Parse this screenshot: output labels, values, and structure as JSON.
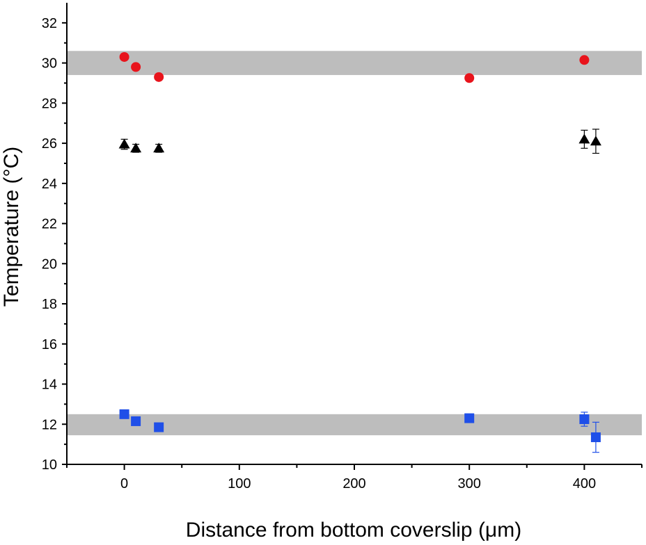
{
  "chart_data": {
    "type": "scatter",
    "title": "",
    "xlabel": "Distance from bottom coverslip (μm)",
    "ylabel": "Temperature (°C)",
    "xlim": [
      -50,
      450
    ],
    "ylim": [
      10,
      33
    ],
    "x_ticks": [
      0,
      100,
      200,
      300,
      400
    ],
    "y_ticks": [
      10,
      12,
      14,
      16,
      18,
      20,
      22,
      24,
      26,
      28,
      30,
      32
    ],
    "grid": false,
    "legend": "none",
    "bands": [
      {
        "y_min": 29.4,
        "y_max": 30.6,
        "color": "#bdbdbd"
      },
      {
        "y_min": 11.45,
        "y_max": 12.5,
        "color": "#bdbdbd"
      }
    ],
    "series": [
      {
        "marker": "circle",
        "color": "#e8141c",
        "points": [
          {
            "x": 0,
            "y": 30.3,
            "err": 0.1
          },
          {
            "x": 10,
            "y": 29.8,
            "err": 0.1
          },
          {
            "x": 30,
            "y": 29.3,
            "err": 0.1
          },
          {
            "x": 300,
            "y": 29.25,
            "err": 0.1
          },
          {
            "x": 400,
            "y": 30.15,
            "err": 0.1
          }
        ]
      },
      {
        "marker": "triangle",
        "color": "#000000",
        "points": [
          {
            "x": 0,
            "y": 25.95,
            "err": 0.25
          },
          {
            "x": 10,
            "y": 25.75,
            "err": 0.2
          },
          {
            "x": 30,
            "y": 25.75,
            "err": 0.2
          },
          {
            "x": 400,
            "y": 26.2,
            "err": 0.45
          },
          {
            "x": 410,
            "y": 26.1,
            "err": 0.6
          }
        ]
      },
      {
        "marker": "square",
        "color": "#1f4fe8",
        "points": [
          {
            "x": 0,
            "y": 12.5,
            "err": 0.1
          },
          {
            "x": 10,
            "y": 12.15,
            "err": 0.1
          },
          {
            "x": 30,
            "y": 11.85,
            "err": 0.1
          },
          {
            "x": 300,
            "y": 12.3,
            "err": 0.1
          },
          {
            "x": 400,
            "y": 12.25,
            "err": 0.35
          },
          {
            "x": 410,
            "y": 11.35,
            "err": 0.75
          }
        ]
      }
    ]
  }
}
